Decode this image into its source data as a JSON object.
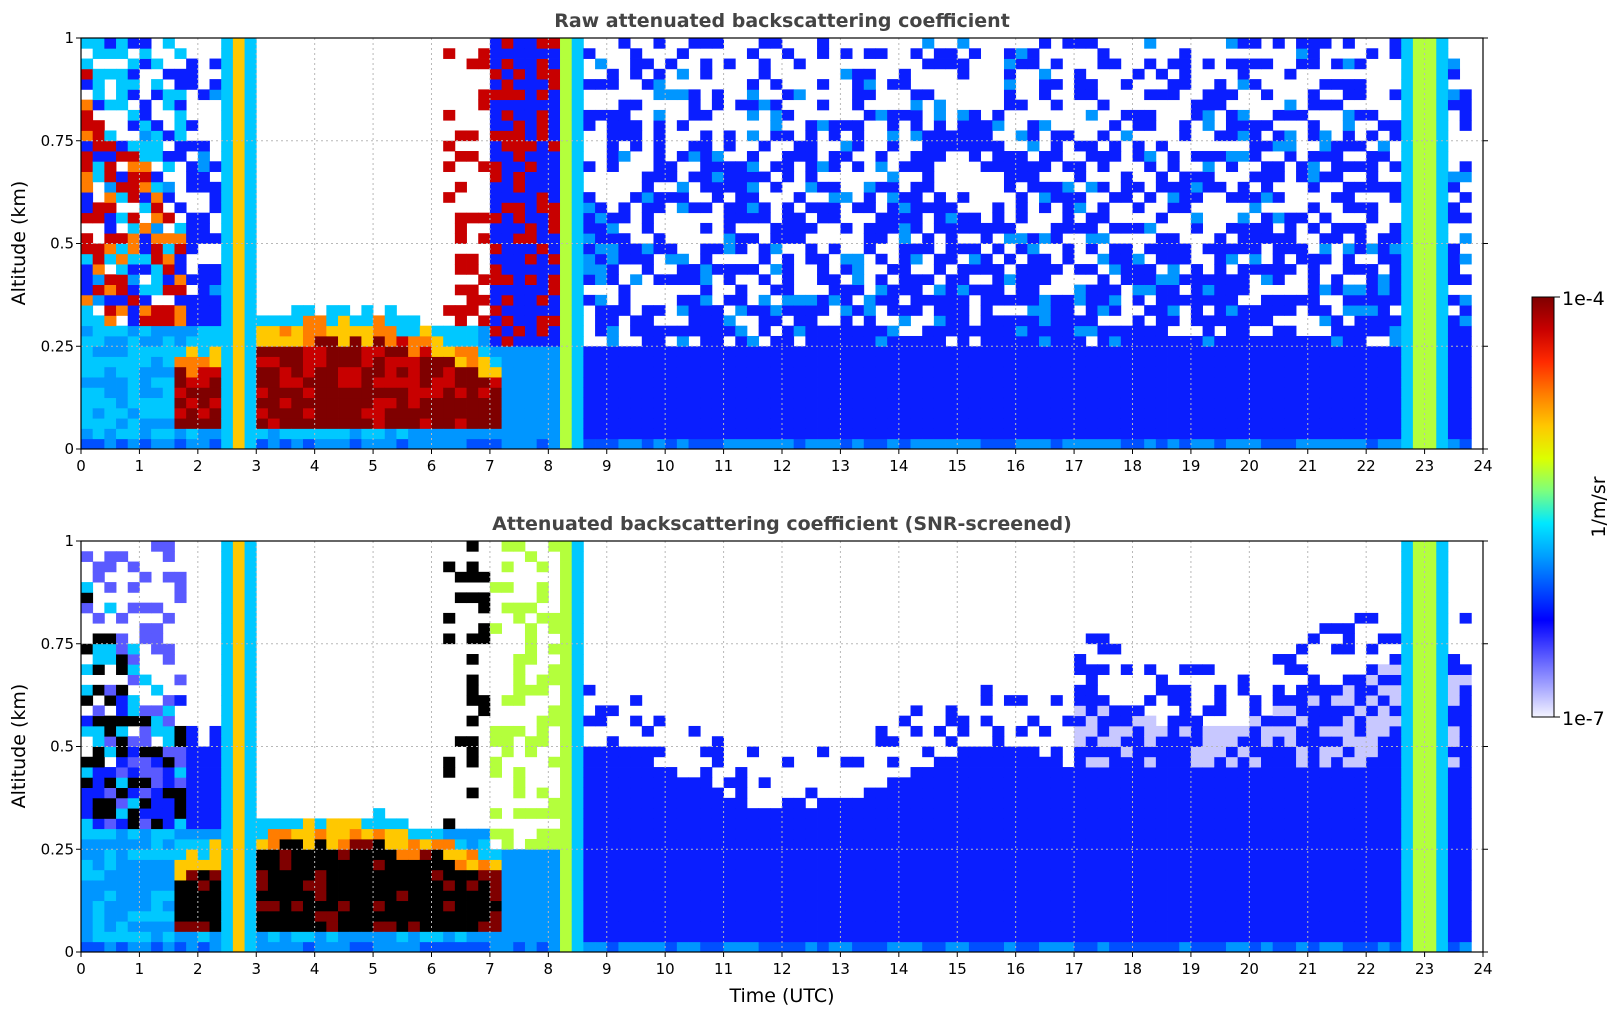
{
  "chart_data": [
    {
      "type": "heatmap",
      "title": "Raw attenuated backscattering coefficient",
      "ylabel": "Altitude (km)",
      "xlabel": "",
      "xlim": [
        0,
        24
      ],
      "ylim": [
        0,
        1
      ],
      "xticks": [
        "0",
        "1",
        "2",
        "3",
        "4",
        "5",
        "6",
        "7",
        "8",
        "9",
        "10",
        "11",
        "12",
        "13",
        "14",
        "15",
        "16",
        "17",
        "18",
        "19",
        "20",
        "21",
        "22",
        "23",
        "24"
      ],
      "yticks": [
        "0",
        "0.25",
        "0.5",
        "0.75",
        "1"
      ],
      "grid": true,
      "colorscale": "jet-like, log scale",
      "color_range": [
        1e-07,
        0.0001
      ],
      "data_end_hour": 23.8,
      "features": [
        {
          "kind": "fog_layer",
          "t_start": 1.6,
          "t_end": 7.1,
          "alt_base": 0.05,
          "alt_top": 0.28
        },
        {
          "kind": "elevated_cloud",
          "t_start": 0.0,
          "t_end": 1.9,
          "alt_base": 0.3,
          "alt_top": 1.0
        },
        {
          "kind": "precip_column",
          "t_start": 2.5,
          "t_end": 2.9
        },
        {
          "kind": "precip_column",
          "t_start": 8.2,
          "t_end": 8.5
        },
        {
          "kind": "precip_column",
          "t_start": 22.7,
          "t_end": 23.3
        }
      ]
    },
    {
      "type": "heatmap",
      "title": "Attenuated backscattering coefficient (SNR-screened)",
      "ylabel": "Altitude (km)",
      "xlabel": "Time (UTC)",
      "xlim": [
        0,
        24
      ],
      "ylim": [
        0,
        1
      ],
      "xticks": [
        "0",
        "1",
        "2",
        "3",
        "4",
        "5",
        "6",
        "7",
        "8",
        "9",
        "10",
        "11",
        "12",
        "13",
        "14",
        "15",
        "16",
        "17",
        "18",
        "19",
        "20",
        "21",
        "22",
        "23",
        "24"
      ],
      "yticks": [
        "0",
        "0.25",
        "0.5",
        "0.75",
        "1"
      ],
      "grid": true,
      "colorscale": "jet-like, log scale",
      "color_range": [
        1e-07,
        0.0001
      ],
      "data_end_hour": 23.8,
      "features": [
        {
          "kind": "fog_layer",
          "t_start": 1.6,
          "t_end": 7.1,
          "alt_base": 0.05,
          "alt_top": 0.28
        },
        {
          "kind": "screened_boundary_layer",
          "t_start": 8.5,
          "t_end": 23.8,
          "alt_top": 0.5
        },
        {
          "kind": "precip_column",
          "t_start": 2.5,
          "t_end": 2.9
        },
        {
          "kind": "precip_column",
          "t_start": 8.2,
          "t_end": 8.5
        },
        {
          "kind": "precip_column",
          "t_start": 22.7,
          "t_end": 23.3
        }
      ]
    }
  ],
  "colorbar": {
    "label": "1/m/sr",
    "max_label": "1e-4",
    "min_label": "1e-7",
    "colors": [
      "#7f0000",
      "#c80000",
      "#ff2a00",
      "#ff7d00",
      "#ffc800",
      "#dcff00",
      "#7dff7d",
      "#00e8ff",
      "#00a0ff",
      "#0050ff",
      "#0000ff",
      "#5050ff",
      "#a0a0ff",
      "#f4f4ff"
    ]
  }
}
